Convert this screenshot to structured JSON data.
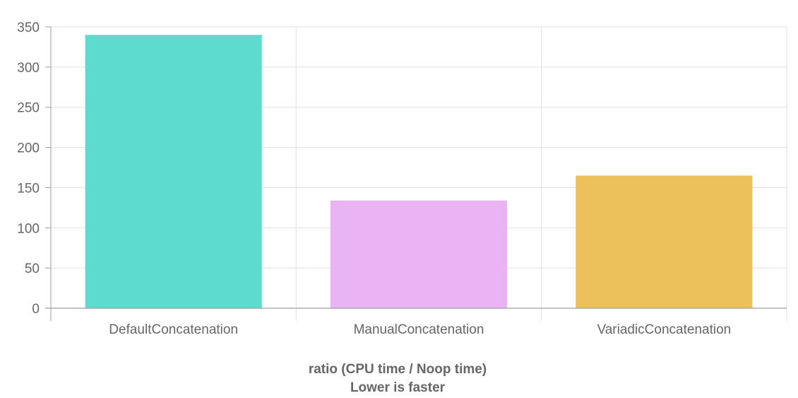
{
  "chart_data": {
    "type": "bar",
    "categories": [
      "DefaultConcatenation",
      "ManualConcatenation",
      "VariadicConcatenation"
    ],
    "values": [
      340,
      134,
      165
    ],
    "colors": [
      "#5ddbcf",
      "#e9b3f4",
      "#ecc05b"
    ],
    "ylim": [
      0,
      350
    ],
    "yticks": [
      0,
      50,
      100,
      150,
      200,
      250,
      300,
      350
    ],
    "xlabel": "ratio (CPU time / Noop time)",
    "xlabel_sub": "Lower is faster",
    "grid": true,
    "legend": "none"
  },
  "colors": {
    "grid": "#e1e1e1",
    "axis": "#9e9e9e",
    "text": "#666666"
  }
}
